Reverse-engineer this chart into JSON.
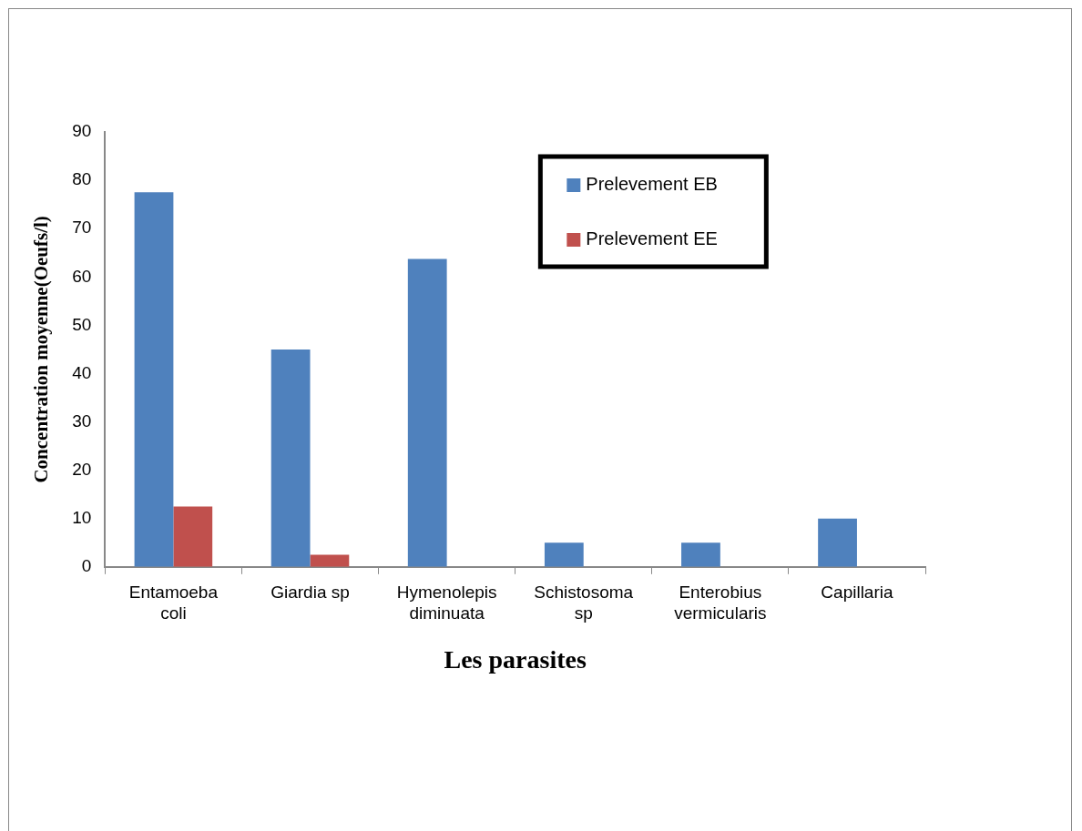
{
  "chart_data": {
    "type": "bar",
    "xlabel": "Les parasites",
    "ylabel": "Concentration moyenne(Oeufs/l)",
    "categories": [
      "Entamoeba coli",
      "Giardia sp",
      "Hymenolepis diminuata",
      "Schistosoma sp",
      "Enterobius vermicularis",
      "Capillaria"
    ],
    "series": [
      {
        "name": "Prelevement EB",
        "color": "#4f81bd",
        "values": [
          77.5,
          45,
          63.7,
          5,
          5,
          10
        ]
      },
      {
        "name": "Prelevement EE",
        "color": "#c0504d",
        "values": [
          12.5,
          2.5,
          null,
          null,
          null,
          null
        ]
      }
    ],
    "ylim": [
      0,
      90
    ],
    "yticks": [
      0,
      10,
      20,
      30,
      40,
      50,
      60,
      70,
      80,
      90
    ],
    "legend": "top right"
  }
}
